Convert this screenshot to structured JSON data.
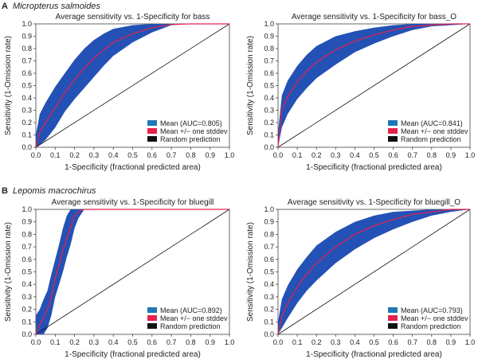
{
  "sections": [
    {
      "letter": "A",
      "species": "Micropterus salmoides"
    },
    {
      "letter": "B",
      "species": "Lepomis macrochirus"
    }
  ],
  "colors": {
    "band": "#2451b5",
    "mean": "#e8204c",
    "random": "#111111",
    "mean_legend": "#1f78b4"
  },
  "chart_data": [
    {
      "type": "area",
      "title": "Average sensitivity vs. 1-Specificity for bass",
      "xlabel": "1-Specificity (fractional predicted area)",
      "ylabel": "Sensitivity (1-Omission rate)",
      "xlim": [
        0,
        1
      ],
      "ylim": [
        0,
        1
      ],
      "xticks": [
        "0.0",
        "0.1",
        "0.2",
        "0.3",
        "0.4",
        "0.5",
        "0.6",
        "0.7",
        "0.8",
        "0.9",
        "1.0"
      ],
      "yticks": [
        "0.0",
        "0.1",
        "0.2",
        "0.3",
        "0.4",
        "0.5",
        "0.6",
        "0.7",
        "0.8",
        "0.9",
        "1.0"
      ],
      "legend": [
        "Mean (AUC=0.805)",
        "Mean +/− one stddev",
        "Random prediction"
      ],
      "legend_position": "bottom-right",
      "x": [
        0,
        0.02,
        0.05,
        0.1,
        0.15,
        0.2,
        0.25,
        0.3,
        0.35,
        0.4,
        0.5,
        0.6,
        0.7,
        0.8,
        0.9,
        1.0
      ],
      "mean": [
        0,
        0.12,
        0.2,
        0.32,
        0.44,
        0.55,
        0.64,
        0.72,
        0.79,
        0.85,
        0.92,
        0.97,
        0.995,
        1,
        1,
        1
      ],
      "upper": [
        0.1,
        0.27,
        0.36,
        0.49,
        0.6,
        0.71,
        0.8,
        0.87,
        0.92,
        0.96,
        0.99,
        1,
        1,
        1,
        1,
        1
      ],
      "lower": [
        0,
        0.02,
        0.06,
        0.16,
        0.29,
        0.39,
        0.48,
        0.57,
        0.66,
        0.74,
        0.85,
        0.93,
        0.99,
        1,
        1,
        1
      ]
    },
    {
      "type": "area",
      "title": "Average sensitivity vs. 1-Specificity for bass_O",
      "xlabel": "1-Specificity (fractional predicted area)",
      "ylabel": "Sensitivity (1-Omission rate)",
      "xlim": [
        0,
        1
      ],
      "ylim": [
        0,
        1
      ],
      "xticks": [
        "0.0",
        "0.1",
        "0.2",
        "0.3",
        "0.4",
        "0.5",
        "0.6",
        "0.7",
        "0.8",
        "0.9",
        "1.0"
      ],
      "yticks": [
        "0.0",
        "0.1",
        "0.2",
        "0.3",
        "0.4",
        "0.5",
        "0.6",
        "0.7",
        "0.8",
        "0.9",
        "1.0"
      ],
      "legend": [
        "Mean (AUC=0.841)",
        "Mean +/− one stddev",
        "Random prediction"
      ],
      "legend_position": "bottom-right",
      "x": [
        0,
        0.02,
        0.05,
        0.1,
        0.15,
        0.2,
        0.3,
        0.4,
        0.5,
        0.6,
        0.7,
        0.8,
        0.9,
        1.0
      ],
      "mean": [
        0,
        0.3,
        0.41,
        0.53,
        0.62,
        0.69,
        0.79,
        0.86,
        0.91,
        0.95,
        0.98,
        0.99,
        1,
        1
      ],
      "upper": [
        0.12,
        0.42,
        0.54,
        0.66,
        0.75,
        0.82,
        0.9,
        0.94,
        0.97,
        0.99,
        1,
        1,
        1,
        1
      ],
      "lower": [
        0,
        0.16,
        0.27,
        0.39,
        0.48,
        0.56,
        0.67,
        0.77,
        0.84,
        0.9,
        0.95,
        0.98,
        0.99,
        1
      ]
    },
    {
      "type": "area",
      "title": "Average sensitivity vs. 1-Specificity for bluegill",
      "xlabel": "1-Specificity (fractional predicted area)",
      "ylabel": "Sensitivity (1-Omission rate)",
      "xlim": [
        0,
        1
      ],
      "ylim": [
        0,
        1
      ],
      "xticks": [
        "0.0",
        "0.1",
        "0.2",
        "0.3",
        "0.4",
        "0.5",
        "0.6",
        "0.7",
        "0.8",
        "0.9",
        "1.0"
      ],
      "yticks": [
        "0.0",
        "0.1",
        "0.2",
        "0.3",
        "0.4",
        "0.5",
        "0.6",
        "0.7",
        "0.8",
        "0.9",
        "1.0"
      ],
      "legend": [
        "Mean (AUC=0.892)",
        "Mean +/− one stddev",
        "Random prediction"
      ],
      "legend_position": "bottom-right",
      "x": [
        0,
        0.02,
        0.04,
        0.06,
        0.08,
        0.1,
        0.12,
        0.14,
        0.16,
        0.18,
        0.2,
        0.22,
        0.25,
        0.3,
        0.5,
        1.0
      ],
      "mean": [
        0,
        0.08,
        0.13,
        0.2,
        0.3,
        0.45,
        0.55,
        0.68,
        0.77,
        0.86,
        0.95,
        0.98,
        1,
        1,
        1,
        1
      ],
      "upper": [
        0.15,
        0.2,
        0.28,
        0.35,
        0.48,
        0.6,
        0.72,
        0.85,
        0.95,
        1,
        1,
        1,
        1,
        1,
        1,
        1
      ],
      "lower": [
        0,
        0,
        0,
        0.05,
        0.15,
        0.3,
        0.4,
        0.5,
        0.62,
        0.72,
        0.85,
        0.93,
        1,
        1,
        1,
        1
      ]
    },
    {
      "type": "area",
      "title": "Average sensitivity vs. 1-Specificity for bluegill_O",
      "xlabel": "1-Specificity (fractional predicted area)",
      "ylabel": "Sensitivity (1-Omission rate)",
      "xlim": [
        0,
        1
      ],
      "ylim": [
        0,
        1
      ],
      "xticks": [
        "0.0",
        "0.1",
        "0.2",
        "0.3",
        "0.4",
        "0.5",
        "0.6",
        "0.7",
        "0.8",
        "0.9",
        "1.0"
      ],
      "yticks": [
        "0.0",
        "0.1",
        "0.2",
        "0.3",
        "0.4",
        "0.5",
        "0.6",
        "0.7",
        "0.8",
        "0.9",
        "1.0"
      ],
      "legend": [
        "Mean (AUC=0.793)",
        "Mean +/− one stddev",
        "Random prediction"
      ],
      "legend_position": "bottom-right",
      "x": [
        0,
        0.02,
        0.05,
        0.1,
        0.15,
        0.2,
        0.3,
        0.4,
        0.5,
        0.6,
        0.7,
        0.8,
        0.9,
        1.0
      ],
      "mean": [
        0,
        0.14,
        0.25,
        0.38,
        0.48,
        0.57,
        0.7,
        0.8,
        0.87,
        0.92,
        0.96,
        0.98,
        1,
        1
      ],
      "upper": [
        0.1,
        0.28,
        0.39,
        0.52,
        0.62,
        0.71,
        0.82,
        0.9,
        0.95,
        0.98,
        0.99,
        1,
        1,
        1
      ],
      "lower": [
        0,
        0.05,
        0.13,
        0.25,
        0.35,
        0.43,
        0.57,
        0.68,
        0.77,
        0.84,
        0.9,
        0.95,
        0.98,
        1
      ]
    }
  ]
}
